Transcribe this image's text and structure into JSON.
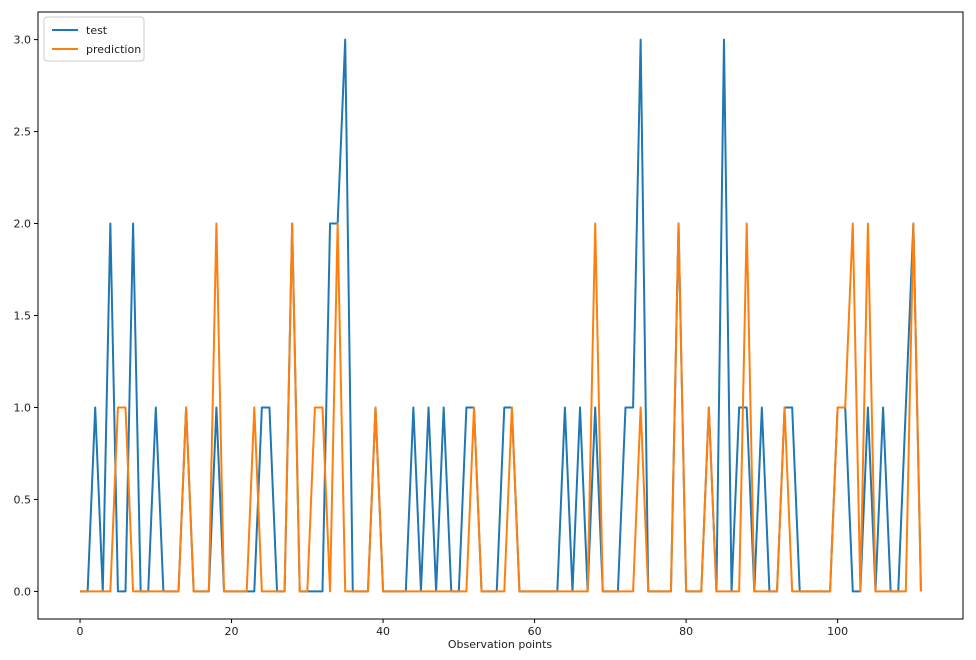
{
  "chart_data": {
    "type": "line",
    "xlabel": "Observation points",
    "ylabel": "",
    "xlim": [
      -5.55,
      116.55
    ],
    "ylim": [
      -0.15,
      3.15
    ],
    "xticks": [
      0,
      20,
      40,
      60,
      80,
      100
    ],
    "yticks": [
      0.0,
      0.5,
      1.0,
      1.5,
      2.0,
      2.5,
      3.0
    ],
    "xtick_labels": [
      "0",
      "20",
      "40",
      "60",
      "80",
      "100"
    ],
    "ytick_labels": [
      "0.0",
      "0.5",
      "1.0",
      "1.5",
      "2.0",
      "2.5",
      "3.0"
    ],
    "grid": false,
    "legend_position": "top-left",
    "x": [
      0,
      1,
      2,
      3,
      4,
      5,
      6,
      7,
      8,
      9,
      10,
      11,
      12,
      13,
      14,
      15,
      16,
      17,
      18,
      19,
      20,
      21,
      22,
      23,
      24,
      25,
      26,
      27,
      28,
      29,
      30,
      31,
      32,
      33,
      34,
      35,
      36,
      37,
      38,
      39,
      40,
      41,
      42,
      43,
      44,
      45,
      46,
      47,
      48,
      49,
      50,
      51,
      52,
      53,
      54,
      55,
      56,
      57,
      58,
      59,
      60,
      61,
      62,
      63,
      64,
      65,
      66,
      67,
      68,
      69,
      70,
      71,
      72,
      73,
      74,
      75,
      76,
      77,
      78,
      79,
      80,
      81,
      82,
      83,
      84,
      85,
      86,
      87,
      88,
      89,
      90,
      91,
      92,
      93,
      94,
      95,
      96,
      97,
      98,
      99,
      100,
      101,
      102,
      103,
      104,
      105,
      106,
      107,
      108,
      109,
      110,
      111
    ],
    "series": [
      {
        "name": "test",
        "color": "#1f77b4",
        "values": [
          0,
          0,
          1,
          0,
          2,
          0,
          0,
          2,
          0,
          0,
          1,
          0,
          0,
          0,
          1,
          0,
          0,
          0,
          1,
          0,
          0,
          0,
          0,
          0,
          1,
          1,
          0,
          0,
          2,
          0,
          0,
          0,
          0,
          2,
          2,
          3,
          0,
          0,
          0,
          1,
          0,
          0,
          0,
          0,
          1,
          0,
          1,
          0,
          1,
          0,
          0,
          1,
          1,
          0,
          0,
          0,
          1,
          1,
          0,
          0,
          0,
          0,
          0,
          0,
          1,
          0,
          1,
          0,
          1,
          0,
          0,
          0,
          1,
          1,
          3,
          0,
          0,
          0,
          0,
          2,
          0,
          0,
          0,
          1,
          0,
          3,
          0,
          1,
          1,
          0,
          1,
          0,
          0,
          1,
          1,
          0,
          0,
          0,
          0,
          0,
          1,
          1,
          0,
          0,
          1,
          0,
          1,
          0,
          0,
          1,
          2,
          0
        ]
      },
      {
        "name": "prediction",
        "color": "#ff7f0e",
        "values": [
          0,
          0,
          0,
          0,
          0,
          1,
          1,
          0,
          0,
          0,
          0,
          0,
          0,
          0,
          1,
          0,
          0,
          0,
          2,
          0,
          0,
          0,
          0,
          1,
          0,
          0,
          0,
          0,
          2,
          0,
          0,
          1,
          1,
          0,
          2,
          0,
          0,
          0,
          0,
          1,
          0,
          0,
          0,
          0,
          0,
          0,
          0,
          0,
          0,
          0,
          0,
          0,
          1,
          0,
          0,
          0,
          0,
          1,
          0,
          0,
          0,
          0,
          0,
          0,
          0,
          0,
          0,
          0,
          2,
          0,
          0,
          0,
          0,
          0,
          1,
          0,
          0,
          0,
          0,
          2,
          0,
          0,
          0,
          1,
          0,
          0,
          0,
          0,
          2,
          0,
          0,
          0,
          0,
          1,
          0,
          0,
          0,
          0,
          0,
          0,
          1,
          1,
          2,
          0,
          2,
          0,
          0,
          0,
          0,
          0,
          2,
          0
        ]
      }
    ]
  }
}
